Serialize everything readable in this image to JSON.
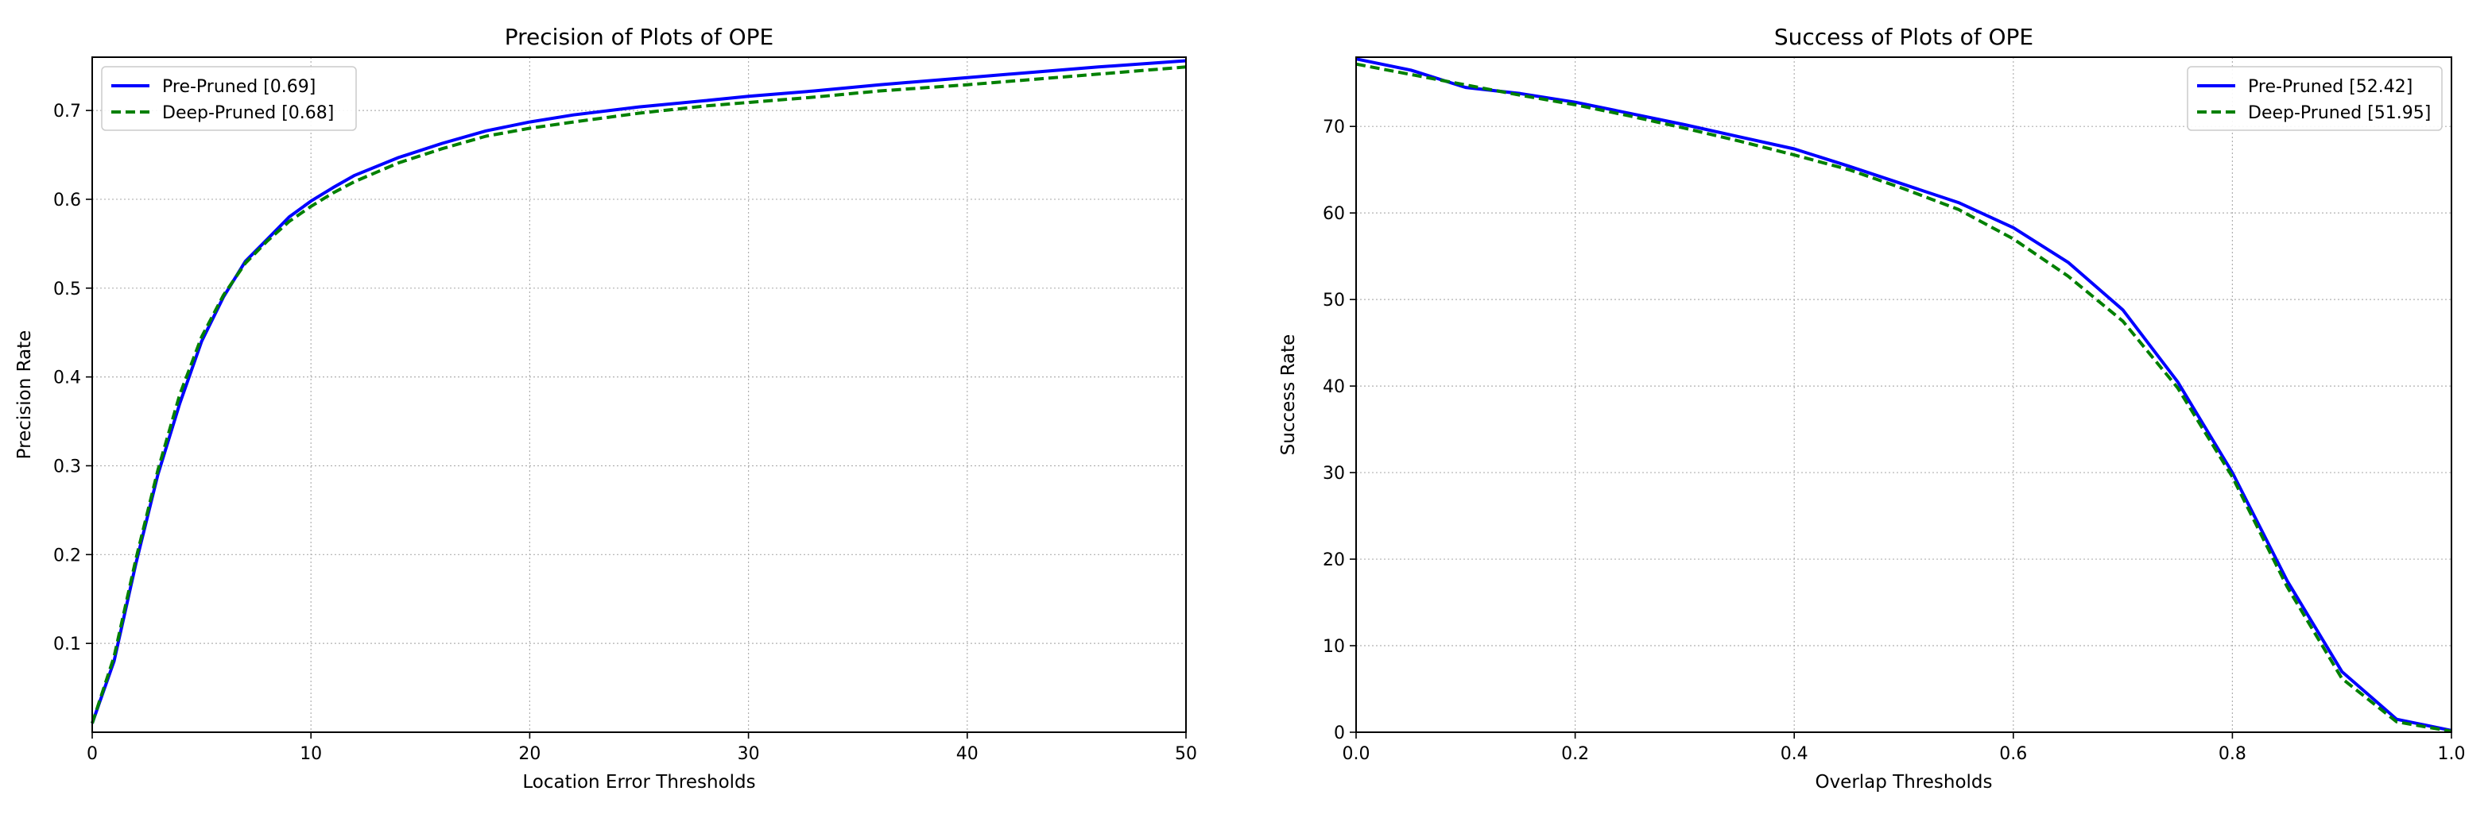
{
  "chart_data": [
    {
      "type": "line",
      "title": "Precision of Plots of OPE",
      "xlabel": "Location Error Thresholds",
      "ylabel": "Precision Rate",
      "xlim": [
        0,
        50
      ],
      "ylim": [
        0,
        0.76
      ],
      "xticks": [
        0,
        10,
        20,
        30,
        40,
        50
      ],
      "yticks": [
        0.1,
        0.2,
        0.3,
        0.4,
        0.5,
        0.6,
        0.7
      ],
      "grid": true,
      "legend_position": "top-left",
      "x": [
        0,
        1,
        2,
        3,
        4,
        5,
        6,
        7,
        8,
        9,
        10,
        11,
        12,
        14,
        16,
        18,
        20,
        22,
        25,
        28,
        30,
        33,
        36,
        40,
        43,
        46,
        50
      ],
      "series": [
        {
          "name": "Pre-Pruned [0.69]",
          "color": "#0000ff",
          "style": "solid",
          "values": [
            0.01,
            0.08,
            0.19,
            0.29,
            0.37,
            0.44,
            0.49,
            0.53,
            0.555,
            0.58,
            0.598,
            0.613,
            0.627,
            0.647,
            0.663,
            0.677,
            0.687,
            0.695,
            0.704,
            0.711,
            0.716,
            0.722,
            0.729,
            0.737,
            0.743,
            0.749,
            0.756
          ]
        },
        {
          "name": "Deep-Pruned [0.68]",
          "color": "#008000",
          "style": "dashed",
          "values": [
            0.01,
            0.085,
            0.195,
            0.295,
            0.38,
            0.445,
            0.492,
            0.528,
            0.553,
            0.575,
            0.592,
            0.607,
            0.62,
            0.641,
            0.657,
            0.671,
            0.68,
            0.687,
            0.697,
            0.705,
            0.709,
            0.715,
            0.722,
            0.729,
            0.735,
            0.741,
            0.749
          ]
        }
      ]
    },
    {
      "type": "line",
      "title": "Success of Plots of OPE",
      "xlabel": "Overlap Thresholds",
      "ylabel": "Success Rate",
      "xlim": [
        0,
        1
      ],
      "ylim": [
        0,
        78
      ],
      "xticks": [
        "0.0",
        "0.2",
        "0.4",
        "0.6",
        "0.8",
        "1.0"
      ],
      "yticks": [
        0,
        10,
        20,
        30,
        40,
        50,
        60,
        70
      ],
      "grid": true,
      "legend_position": "top-right",
      "x": [
        0,
        0.05,
        0.1,
        0.15,
        0.2,
        0.25,
        0.3,
        0.35,
        0.4,
        0.45,
        0.5,
        0.55,
        0.6,
        0.65,
        0.7,
        0.75,
        0.8,
        0.85,
        0.9,
        0.95,
        1.0
      ],
      "series": [
        {
          "name": "Pre-Pruned [52.42]",
          "color": "#0000ff",
          "style": "solid",
          "values": [
            77.8,
            76.5,
            74.5,
            73.8,
            72.8,
            71.5,
            70.2,
            68.8,
            67.4,
            65.4,
            63.3,
            61.2,
            58.3,
            54.3,
            48.8,
            40.5,
            30.0,
            17.5,
            7.0,
            1.5,
            0.2
          ]
        },
        {
          "name": "Deep-Pruned [51.95]",
          "color": "#008000",
          "style": "dashed",
          "values": [
            77.2,
            76.0,
            74.8,
            73.6,
            72.5,
            71.2,
            69.8,
            68.3,
            66.7,
            65.0,
            62.8,
            60.4,
            57.0,
            52.7,
            47.5,
            39.8,
            29.5,
            16.8,
            6.2,
            1.2,
            0.1
          ]
        }
      ]
    }
  ]
}
